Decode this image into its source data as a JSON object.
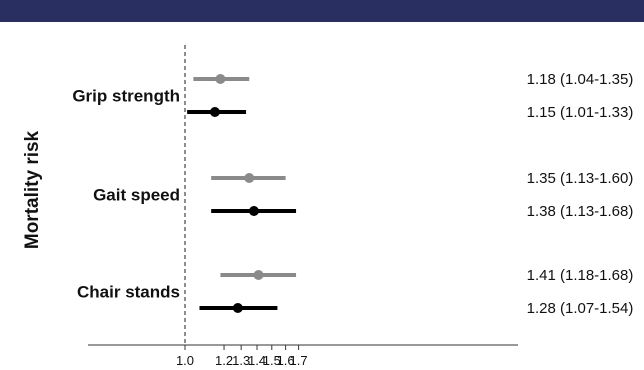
{
  "chart_data": {
    "type": "scatter",
    "title": "",
    "xlabel": "",
    "ylabel": "Mortality risk",
    "x_scale": "log",
    "xlim": [
      0.92,
      1.95
    ],
    "x_ticks": [
      1.0,
      1.2,
      1.3,
      1.4,
      1.5,
      1.6,
      1.7
    ],
    "x_tick_labels": [
      "1.0",
      "1.2",
      "1.3",
      "1.4",
      "1.5",
      "1.6",
      "1.7"
    ],
    "reference_line": 1.0,
    "grid": false,
    "categories": [
      "Grip strength",
      "Gait speed",
      "Chair stands"
    ],
    "series": [
      {
        "color": "#8a8a8a",
        "values": [
          {
            "estimate": 1.18,
            "lower": 1.04,
            "upper": 1.35,
            "label": "1.18 (1.04-1.35)"
          },
          {
            "estimate": 1.35,
            "lower": 1.13,
            "upper": 1.6,
            "label": "1.35 (1.13-1.60)"
          },
          {
            "estimate": 1.41,
            "lower": 1.18,
            "upper": 1.68,
            "label": "1.41 (1.18-1.68)"
          }
        ]
      },
      {
        "color": "#000000",
        "values": [
          {
            "estimate": 1.15,
            "lower": 1.01,
            "upper": 1.33,
            "label": "1.15 (1.01-1.33)"
          },
          {
            "estimate": 1.38,
            "lower": 1.13,
            "upper": 1.68,
            "label": "1.38 (1.13-1.68)"
          },
          {
            "estimate": 1.28,
            "lower": 1.07,
            "upper": 1.54,
            "label": "1.28 (1.07-1.54)"
          }
        ]
      }
    ]
  },
  "colors": {
    "top_bar": "#2a2f62",
    "reference_line": "#444444",
    "axis": "#333333"
  }
}
